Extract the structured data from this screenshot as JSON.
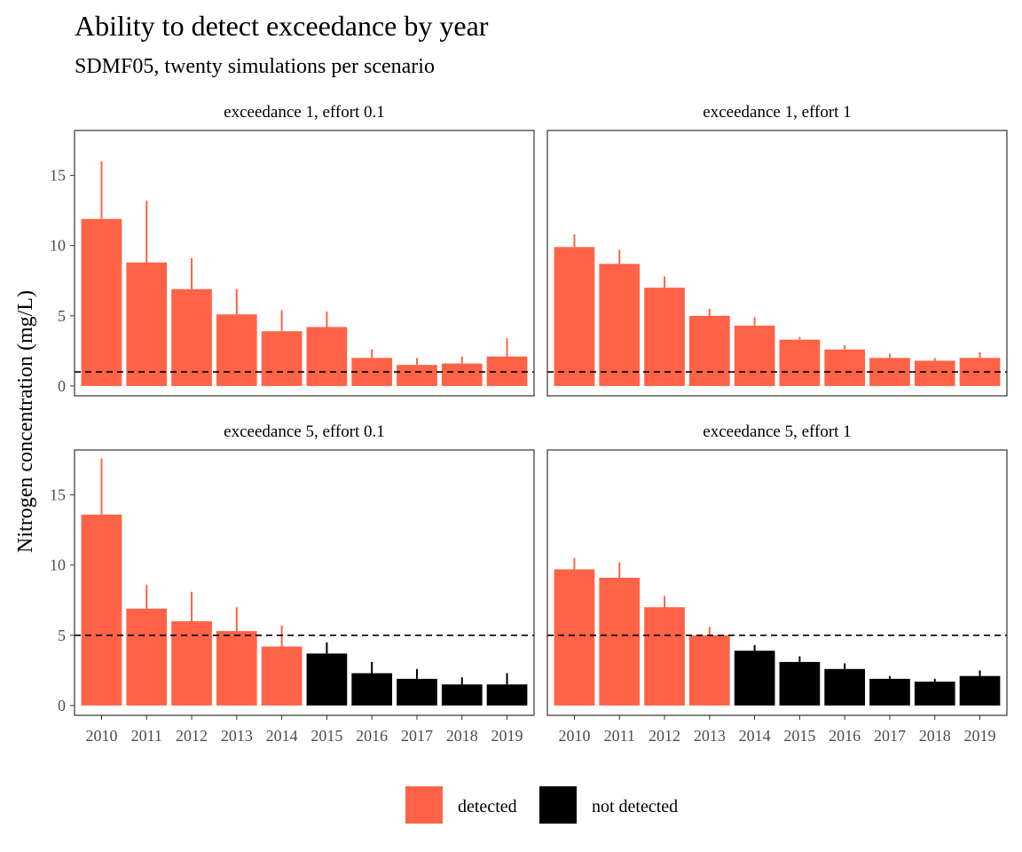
{
  "chart_data": {
    "type": "bar",
    "title": "Ability to detect exceedance by year",
    "subtitle": "SDMF05, twenty simulations per scenario",
    "xlabel": "",
    "ylabel": "Nitrogen concentration (mg/L)",
    "ylim": [
      -0.7,
      18.2
    ],
    "yticks": [
      0,
      5,
      10,
      15
    ],
    "categories": [
      "2010",
      "2011",
      "2012",
      "2013",
      "2014",
      "2015",
      "2016",
      "2017",
      "2018",
      "2019"
    ],
    "grid": false,
    "legend": {
      "position": "bottom",
      "entries": [
        {
          "label": "detected",
          "color": "#FF6347"
        },
        {
          "label": "not detected",
          "color": "#000000"
        }
      ]
    },
    "panels": [
      {
        "label": "exceedance 1, effort 0.1",
        "threshold": 1,
        "values": [
          11.9,
          8.8,
          6.9,
          5.1,
          3.9,
          4.2,
          2.0,
          1.5,
          1.6,
          2.1
        ],
        "upper": [
          16.0,
          13.2,
          9.1,
          6.9,
          5.4,
          5.3,
          2.6,
          2.0,
          2.1,
          3.4
        ],
        "status": [
          "detected",
          "detected",
          "detected",
          "detected",
          "detected",
          "detected",
          "detected",
          "detected",
          "detected",
          "detected"
        ]
      },
      {
        "label": "exceedance 1, effort 1",
        "threshold": 1,
        "values": [
          9.9,
          8.7,
          7.0,
          5.0,
          4.3,
          3.3,
          2.6,
          2.0,
          1.8,
          2.0
        ],
        "upper": [
          10.8,
          9.7,
          7.8,
          5.5,
          4.9,
          3.5,
          2.9,
          2.3,
          2.0,
          2.4
        ],
        "status": [
          "detected",
          "detected",
          "detected",
          "detected",
          "detected",
          "detected",
          "detected",
          "detected",
          "detected",
          "detected"
        ]
      },
      {
        "label": "exceedance 5, effort 0.1",
        "threshold": 5,
        "values": [
          13.6,
          6.9,
          6.0,
          5.3,
          4.2,
          3.7,
          2.3,
          1.9,
          1.5,
          1.5
        ],
        "upper": [
          17.6,
          8.6,
          8.1,
          7.0,
          5.7,
          4.5,
          3.1,
          2.6,
          2.0,
          2.3
        ],
        "status": [
          "detected",
          "detected",
          "detected",
          "detected",
          "detected",
          "not detected",
          "not detected",
          "not detected",
          "not detected",
          "not detected"
        ]
      },
      {
        "label": "exceedance 5, effort 1",
        "threshold": 5,
        "values": [
          9.7,
          9.1,
          7.0,
          5.0,
          3.9,
          3.1,
          2.6,
          1.9,
          1.7,
          2.1
        ],
        "upper": [
          10.5,
          10.2,
          7.8,
          5.6,
          4.3,
          3.5,
          3.0,
          2.1,
          1.9,
          2.5
        ],
        "status": [
          "detected",
          "detected",
          "detected",
          "detected",
          "not detected",
          "not detected",
          "not detected",
          "not detected",
          "not detected",
          "not detected"
        ]
      }
    ]
  }
}
